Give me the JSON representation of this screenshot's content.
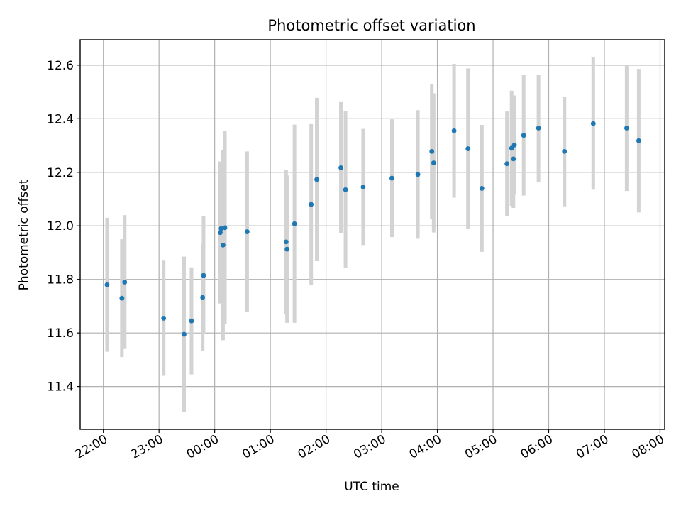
{
  "chart_data": {
    "type": "scatter",
    "title": "Photometric offset variation",
    "xlabel": "UTC time",
    "ylabel": "Photometric offset",
    "x_unit": "hour",
    "xlim": [
      "21:35",
      "08:05"
    ],
    "ylim": [
      11.24,
      12.695
    ],
    "xticks": [
      "22:00",
      "23:00",
      "00:00",
      "01:00",
      "02:00",
      "03:00",
      "04:00",
      "05:00",
      "06:00",
      "07:00",
      "08:00"
    ],
    "yticks": [
      11.4,
      11.6,
      11.8,
      12.0,
      12.2,
      12.4,
      12.6
    ],
    "grid": true,
    "colors": {
      "point": "#1f77b4",
      "errorbar": "#d3d3d3",
      "grid": "#b0b0b0"
    },
    "series": [
      {
        "points": [
          {
            "x": "22:04",
            "y": 11.78,
            "err": 0.25
          },
          {
            "x": "22:20",
            "y": 11.73,
            "err": 0.22
          },
          {
            "x": "22:23",
            "y": 11.79,
            "err": 0.25
          },
          {
            "x": "23:05",
            "y": 11.655,
            "err": 0.215
          },
          {
            "x": "23:27",
            "y": 11.595,
            "err": 0.29
          },
          {
            "x": "23:35",
            "y": 11.645,
            "err": 0.2
          },
          {
            "x": "23:47",
            "y": 11.733,
            "err": 0.2
          },
          {
            "x": "23:48",
            "y": 11.815,
            "err": 0.22
          },
          {
            "x": "00:06",
            "y": 11.975,
            "err": 0.265
          },
          {
            "x": "00:07",
            "y": 11.99,
            "err": 0.25
          },
          {
            "x": "00:09",
            "y": 11.928,
            "err": 0.355
          },
          {
            "x": "00:11",
            "y": 11.993,
            "err": 0.36
          },
          {
            "x": "00:35",
            "y": 11.978,
            "err": 0.3
          },
          {
            "x": "01:17",
            "y": 11.94,
            "err": 0.27
          },
          {
            "x": "01:18",
            "y": 11.913,
            "err": 0.275
          },
          {
            "x": "01:26",
            "y": 12.008,
            "err": 0.37
          },
          {
            "x": "01:44",
            "y": 12.08,
            "err": 0.3
          },
          {
            "x": "01:50",
            "y": 12.173,
            "err": 0.305
          },
          {
            "x": "02:16",
            "y": 12.217,
            "err": 0.245
          },
          {
            "x": "02:21",
            "y": 12.135,
            "err": 0.293
          },
          {
            "x": "02:40",
            "y": 12.145,
            "err": 0.217
          },
          {
            "x": "03:11",
            "y": 12.178,
            "err": 0.22
          },
          {
            "x": "03:39",
            "y": 12.192,
            "err": 0.24
          },
          {
            "x": "03:54",
            "y": 12.278,
            "err": 0.253
          },
          {
            "x": "03:56",
            "y": 12.235,
            "err": 0.26
          },
          {
            "x": "04:18",
            "y": 12.355,
            "err": 0.25
          },
          {
            "x": "04:33",
            "y": 12.288,
            "err": 0.3
          },
          {
            "x": "04:48",
            "y": 12.14,
            "err": 0.237
          },
          {
            "x": "05:15",
            "y": 12.232,
            "err": 0.195
          },
          {
            "x": "05:20",
            "y": 12.29,
            "err": 0.215
          },
          {
            "x": "05:22",
            "y": 12.25,
            "err": 0.183
          },
          {
            "x": "05:23",
            "y": 12.302,
            "err": 0.185
          },
          {
            "x": "05:33",
            "y": 12.338,
            "err": 0.225
          },
          {
            "x": "05:49",
            "y": 12.365,
            "err": 0.2
          },
          {
            "x": "06:17",
            "y": 12.278,
            "err": 0.205
          },
          {
            "x": "06:48",
            "y": 12.382,
            "err": 0.247
          },
          {
            "x": "07:24",
            "y": 12.365,
            "err": 0.235
          },
          {
            "x": "07:37",
            "y": 12.318,
            "err": 0.268
          }
        ]
      }
    ]
  }
}
